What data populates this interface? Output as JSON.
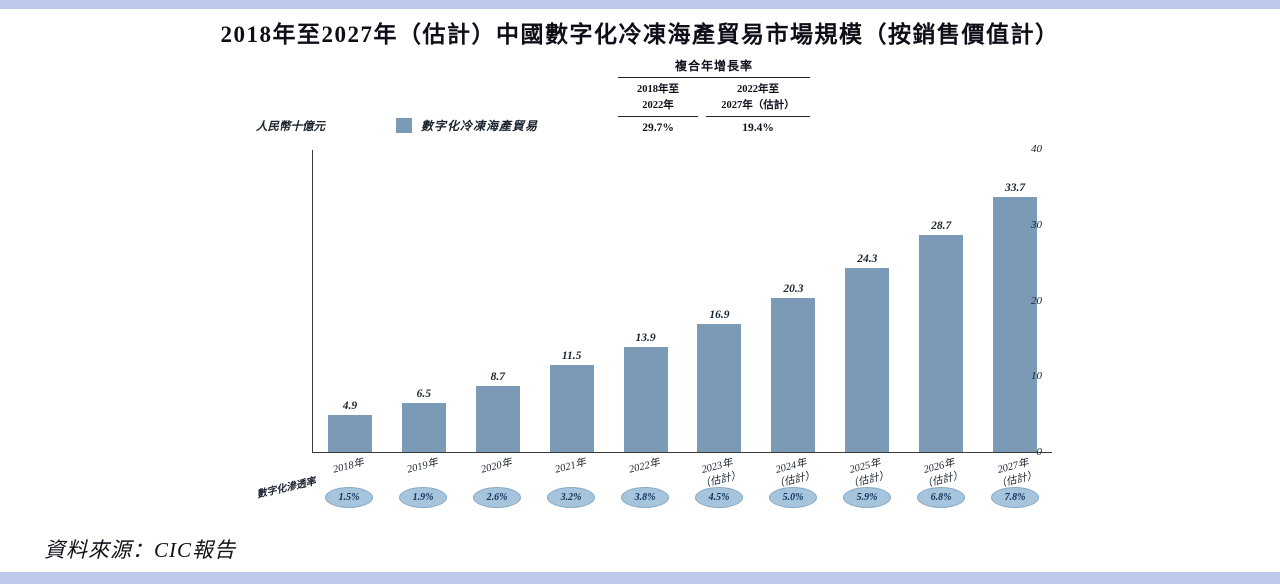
{
  "title": "2018年至2027年（估計）中國數字化冷凍海產貿易市場規模（按銷售價值計）",
  "cagr": {
    "header": "複合年增長率",
    "columns": [
      {
        "label_line1": "2018年至",
        "label_line2": "2022年",
        "value": "29.7%"
      },
      {
        "label_line1": "2022年至",
        "label_line2": "2027年（估計）",
        "value": "19.4%"
      }
    ]
  },
  "axis": {
    "y_unit": "人民幣十億元",
    "y_ticks": [
      0,
      10,
      20,
      30,
      40
    ]
  },
  "legend": {
    "label": "數字化冷凍海產貿易",
    "color": "#7b9ab6"
  },
  "colors": {
    "bar": "#7b9ab6",
    "penetration_badge": "#a6c4dc",
    "border_strip": "#bec8ea"
  },
  "chart_data": {
    "type": "bar",
    "title": "2018年至2027年（估計）中國數字化冷凍海產貿易市場規模（按銷售價值計）",
    "xlabel": "",
    "ylabel": "人民幣十億元",
    "ylim": [
      0,
      40
    ],
    "grid": false,
    "legend_position": "top-left",
    "categories": [
      "2018年",
      "2019年",
      "2020年",
      "2021年",
      "2022年",
      "2023年（估計）",
      "2024年（估計）",
      "2025年（估計）",
      "2026年（估計）",
      "2027年（估計）"
    ],
    "values": [
      4.9,
      6.5,
      8.7,
      11.5,
      13.9,
      16.9,
      20.3,
      24.3,
      28.7,
      33.7
    ],
    "series_name": "數字化冷凍海產貿易",
    "cagr": [
      {
        "period": "2018年至2022年",
        "value": "29.7%"
      },
      {
        "period": "2022年至2027年（估計）",
        "value": "19.4%"
      }
    ],
    "penetration_label": "數字化滲透率",
    "penetration": [
      "1.5%",
      "1.9%",
      "2.6%",
      "3.2%",
      "3.8%",
      "4.5%",
      "5.0%",
      "5.9%",
      "6.8%",
      "7.8%"
    ]
  },
  "source": "資料來源：CIC報告"
}
